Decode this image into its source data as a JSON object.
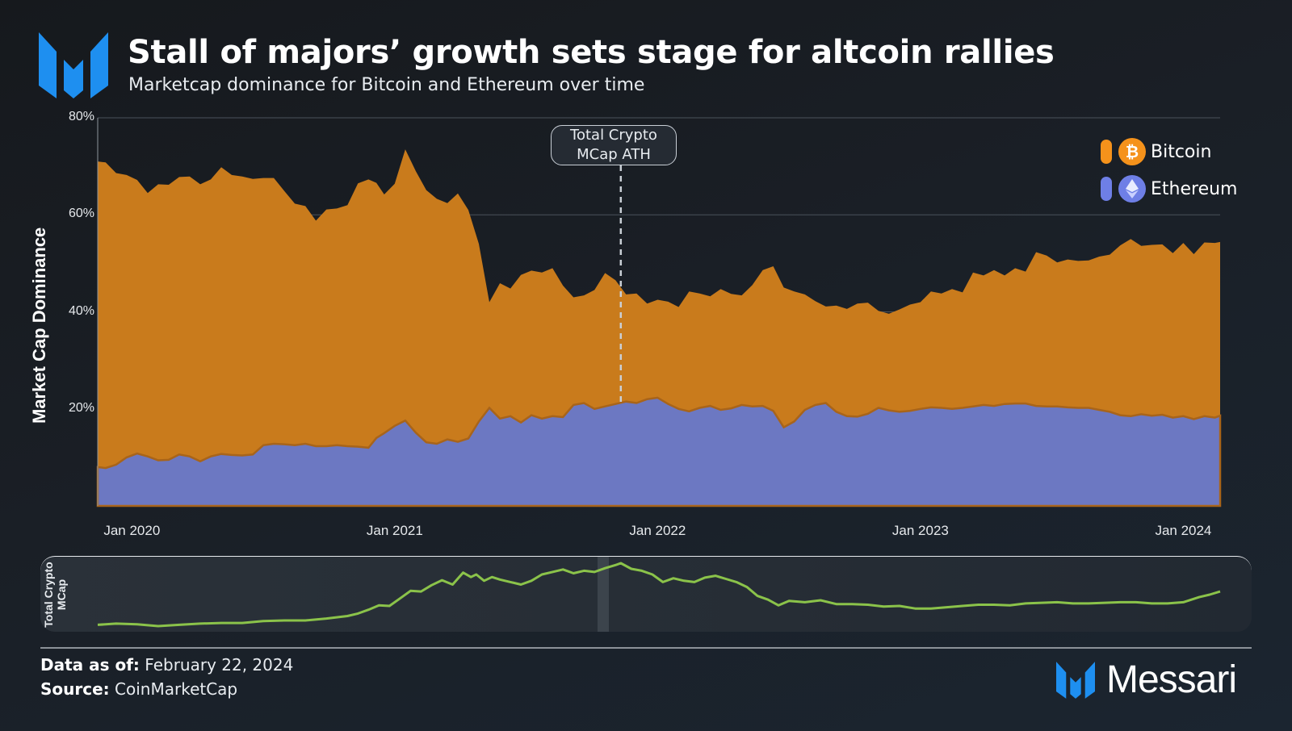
{
  "header": {
    "title": "Stall of majors’ growth sets stage for altcoin rallies",
    "subtitle": "Marketcap dominance for Bitcoin and Ethereum over time"
  },
  "colors": {
    "bitcoin": "#c97b1c",
    "ethereum": "#6c78c2",
    "bitcoin_legend": "#f5921b",
    "ethereum_legend": "#6e7fe6",
    "sparkline": "#8bc34a",
    "brand_blue": "#1e8ff0"
  },
  "chart_data": [
    {
      "type": "area",
      "stacked": false,
      "title": "Stall of majors’ growth sets stage for altcoin rallies",
      "subtitle": "Marketcap dominance for Bitcoin and Ethereum over time",
      "xlabel": "",
      "ylabel": "Market Cap Dominance",
      "ylim": [
        0,
        80
      ],
      "yticks": [
        "20%",
        "40%",
        "60%",
        "80%"
      ],
      "ytick_values": [
        20,
        40,
        60,
        80
      ],
      "xlim": [
        2019.87,
        2024.14
      ],
      "xticks": [
        "Jan 2020",
        "Jan 2021",
        "Jan 2022",
        "Jan 2023",
        "Jan 2024"
      ],
      "xtick_values": [
        2020.0,
        2021.0,
        2022.0,
        2023.0,
        2024.0
      ],
      "grid": true,
      "legend_position": "top-right",
      "annotations": [
        {
          "label": "Total Crypto MCap ATH",
          "x": 2021.86
        }
      ],
      "x": [
        2019.87,
        2019.9,
        2019.94,
        2019.98,
        2020.02,
        2020.06,
        2020.1,
        2020.14,
        2020.18,
        2020.22,
        2020.26,
        2020.3,
        2020.34,
        2020.38,
        2020.42,
        2020.46,
        2020.5,
        2020.54,
        2020.58,
        2020.62,
        2020.66,
        2020.7,
        2020.74,
        2020.78,
        2020.82,
        2020.86,
        2020.9,
        2020.93,
        2020.96,
        2021.0,
        2021.04,
        2021.08,
        2021.12,
        2021.16,
        2021.2,
        2021.24,
        2021.28,
        2021.32,
        2021.36,
        2021.4,
        2021.44,
        2021.48,
        2021.52,
        2021.56,
        2021.6,
        2021.64,
        2021.68,
        2021.72,
        2021.76,
        2021.8,
        2021.84,
        2021.88,
        2021.92,
        2021.96,
        2022.0,
        2022.04,
        2022.08,
        2022.12,
        2022.16,
        2022.2,
        2022.24,
        2022.28,
        2022.32,
        2022.36,
        2022.4,
        2022.44,
        2022.48,
        2022.52,
        2022.56,
        2022.6,
        2022.64,
        2022.68,
        2022.72,
        2022.76,
        2022.8,
        2022.84,
        2022.88,
        2022.92,
        2022.96,
        2023.0,
        2023.04,
        2023.08,
        2023.12,
        2023.16,
        2023.2,
        2023.24,
        2023.28,
        2023.32,
        2023.36,
        2023.4,
        2023.44,
        2023.48,
        2023.52,
        2023.56,
        2023.6,
        2023.64,
        2023.68,
        2023.72,
        2023.76,
        2023.8,
        2023.84,
        2023.88,
        2023.92,
        2023.96,
        2024.0,
        2024.04,
        2024.08,
        2024.12,
        2024.14
      ],
      "series": [
        {
          "name": "Bitcoin",
          "values": [
            71,
            70.8,
            68.6,
            68.2,
            67.2,
            64.5,
            66.3,
            66.2,
            67.8,
            67.9,
            66.3,
            67.3,
            69.8,
            68.2,
            67.9,
            67.4,
            67.6,
            67.6,
            64.9,
            62.3,
            61.8,
            58.8,
            61.1,
            61.3,
            62.0,
            66.5,
            67.3,
            66.6,
            64.2,
            66.4,
            73.5,
            69.0,
            65.1,
            63.3,
            62.4,
            64.4,
            61.0,
            54.0,
            42.0,
            45.9,
            44.8,
            47.6,
            48.5,
            48.1,
            49.0,
            45.4,
            43.0,
            43.4,
            44.5,
            48.0,
            46.5,
            43.6,
            43.8,
            41.7,
            42.5,
            42.1,
            41.0,
            44.2,
            43.8,
            43.2,
            44.7,
            43.7,
            43.4,
            45.5,
            48.6,
            49.4,
            45.0,
            44.2,
            43.6,
            42.2,
            41.1,
            41.3,
            40.6,
            41.7,
            41.9,
            40.2,
            39.6,
            40.5,
            41.5,
            42.0,
            44.2,
            43.8,
            44.7,
            44.0,
            48.1,
            47.5,
            48.6,
            47.5,
            49.0,
            48.3,
            52.3,
            51.6,
            50.2,
            50.8,
            50.5,
            50.6,
            51.4,
            51.8,
            53.7,
            55.0,
            53.6,
            53.8,
            53.9,
            52.1,
            54.2,
            51.9,
            54.3,
            54.2,
            54.4
          ]
        },
        {
          "name": "Ethereum",
          "values": [
            8.0,
            7.8,
            8.5,
            10.0,
            10.8,
            10.2,
            9.4,
            9.5,
            10.6,
            10.2,
            9.2,
            10.2,
            10.7,
            10.5,
            10.4,
            10.6,
            12.5,
            12.8,
            12.7,
            12.5,
            12.8,
            12.3,
            12.3,
            12.5,
            12.3,
            12.2,
            12.0,
            14.0,
            15.0,
            16.5,
            17.6,
            15.1,
            13.1,
            12.8,
            13.7,
            13.2,
            13.9,
            17.4,
            20.2,
            18.0,
            18.5,
            17.2,
            18.7,
            18.0,
            18.5,
            18.3,
            20.8,
            21.2,
            20.0,
            20.5,
            21.0,
            21.5,
            21.2,
            22.0,
            22.3,
            21.0,
            20.0,
            19.5,
            20.2,
            20.6,
            19.8,
            20.1,
            20.8,
            20.5,
            20.6,
            19.6,
            16.2,
            17.4,
            19.8,
            20.8,
            21.2,
            19.4,
            18.5,
            18.4,
            19.0,
            20.2,
            19.7,
            19.4,
            19.6,
            20.0,
            20.3,
            20.2,
            20.0,
            20.2,
            20.5,
            20.8,
            20.6,
            21.0,
            21.1,
            21.1,
            20.6,
            20.5,
            20.5,
            20.3,
            20.2,
            20.2,
            19.8,
            19.4,
            18.7,
            18.5,
            18.9,
            18.6,
            18.8,
            18.2,
            18.5,
            17.9,
            18.5,
            18.2,
            18.6
          ]
        }
      ]
    },
    {
      "type": "line",
      "title": "",
      "ylabel": "Total Crypto MCap",
      "y_units": "relative (0 = min, 1 = max; no axis shown)",
      "x": [
        2019.87,
        2019.94,
        2020.02,
        2020.1,
        2020.18,
        2020.26,
        2020.34,
        2020.42,
        2020.5,
        2020.58,
        2020.66,
        2020.74,
        2020.82,
        2020.86,
        2020.9,
        2020.94,
        2020.98,
        2021.02,
        2021.06,
        2021.1,
        2021.14,
        2021.18,
        2021.22,
        2021.26,
        2021.29,
        2021.31,
        2021.34,
        2021.37,
        2021.4,
        2021.44,
        2021.48,
        2021.52,
        2021.56,
        2021.6,
        2021.64,
        2021.68,
        2021.72,
        2021.76,
        2021.8,
        2021.84,
        2021.86,
        2021.9,
        2021.94,
        2021.98,
        2022.02,
        2022.06,
        2022.1,
        2022.14,
        2022.18,
        2022.22,
        2022.26,
        2022.3,
        2022.34,
        2022.38,
        2022.42,
        2022.46,
        2022.5,
        2022.56,
        2022.62,
        2022.68,
        2022.74,
        2022.8,
        2022.86,
        2022.92,
        2022.98,
        2023.04,
        2023.1,
        2023.16,
        2023.22,
        2023.28,
        2023.34,
        2023.4,
        2023.46,
        2023.52,
        2023.58,
        2023.64,
        2023.7,
        2023.76,
        2023.82,
        2023.88,
        2023.94,
        2024.0,
        2024.06,
        2024.1,
        2024.14
      ],
      "values": [
        0.02,
        0.04,
        0.03,
        0.0,
        0.02,
        0.04,
        0.05,
        0.05,
        0.08,
        0.09,
        0.09,
        0.12,
        0.16,
        0.2,
        0.26,
        0.33,
        0.32,
        0.44,
        0.56,
        0.55,
        0.65,
        0.73,
        0.66,
        0.85,
        0.78,
        0.82,
        0.72,
        0.78,
        0.74,
        0.7,
        0.66,
        0.72,
        0.82,
        0.86,
        0.9,
        0.84,
        0.88,
        0.86,
        0.92,
        0.97,
        1.0,
        0.91,
        0.88,
        0.82,
        0.7,
        0.76,
        0.72,
        0.7,
        0.77,
        0.8,
        0.75,
        0.7,
        0.62,
        0.48,
        0.42,
        0.33,
        0.4,
        0.38,
        0.41,
        0.35,
        0.35,
        0.34,
        0.31,
        0.32,
        0.28,
        0.28,
        0.3,
        0.32,
        0.34,
        0.34,
        0.33,
        0.36,
        0.37,
        0.38,
        0.36,
        0.36,
        0.37,
        0.38,
        0.38,
        0.36,
        0.36,
        0.38,
        0.46,
        0.5,
        0.55
      ]
    }
  ],
  "legend": {
    "items": [
      {
        "label": "Bitcoin",
        "icon": "bitcoin-icon"
      },
      {
        "label": "Ethereum",
        "icon": "ethereum-icon"
      }
    ]
  },
  "annotation": {
    "line1": "Total Crypto",
    "line2": "MCap ATH"
  },
  "sparkline": {
    "label_line1": "Total Crypto",
    "label_line2": "MCap"
  },
  "footer": {
    "data_as_of_label": "Data as of:",
    "data_as_of_value": "February 22, 2024",
    "source_label": "Source:",
    "source_value": "CoinMarketCap",
    "brand": "Messari"
  }
}
